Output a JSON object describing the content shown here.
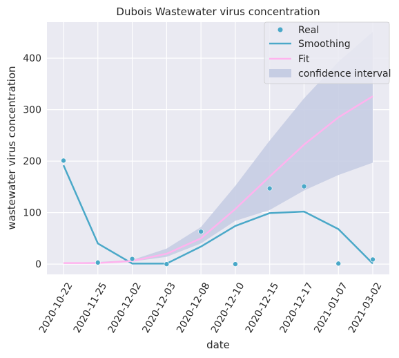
{
  "chart_data": {
    "type": "line",
    "title": "Dubois Wastewater virus concentration",
    "xlabel": "date",
    "ylabel": "wastewater virus concentration",
    "categories": [
      "2020-10-22",
      "2020-11-25",
      "2020-12-02",
      "2020-12-03",
      "2020-12-08",
      "2020-12-10",
      "2020-12-15",
      "2020-12-17",
      "2021-01-07",
      "2021-03-02"
    ],
    "ylim": [
      -20,
      470
    ],
    "yticks": [
      0,
      100,
      200,
      300,
      400
    ],
    "grid": true,
    "legend_position": "top-right",
    "series": [
      {
        "name": "Real",
        "kind": "scatter",
        "color": "#4aa8c8",
        "values": [
          201,
          3,
          10,
          0,
          63,
          0,
          147,
          151,
          1,
          9
        ]
      },
      {
        "name": "Smoothing",
        "kind": "line",
        "color": "#4aa8c8",
        "values": [
          192,
          40,
          1,
          1,
          34,
          74,
          99,
          102,
          68,
          1
        ]
      },
      {
        "name": "Fit",
        "kind": "line",
        "color": "#ffb3ee",
        "values": [
          2,
          2,
          6,
          20,
          50,
          107,
          170,
          232,
          285,
          326
        ]
      },
      {
        "name": "confidence interval",
        "kind": "band",
        "color": "#c6cde3",
        "lower": [
          1,
          1,
          5,
          14,
          40,
          84,
          105,
          143,
          173,
          197
        ],
        "upper": [
          3,
          4,
          8,
          30,
          72,
          152,
          240,
          322,
          393,
          451
        ]
      }
    ]
  }
}
